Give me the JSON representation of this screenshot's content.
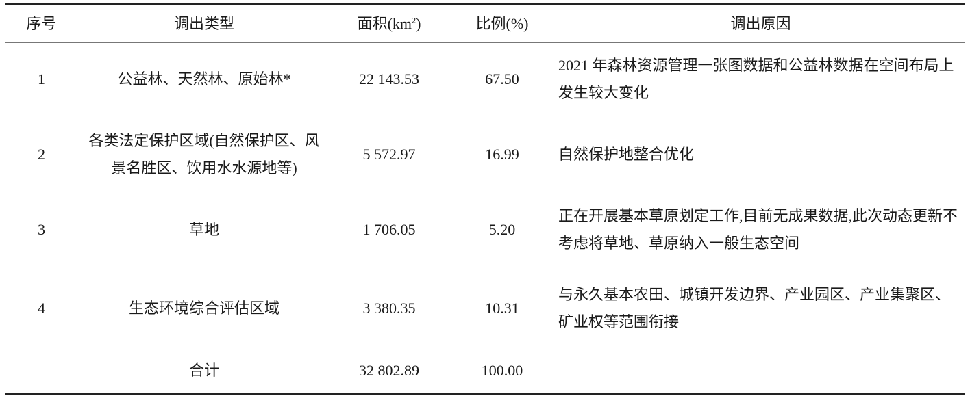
{
  "table": {
    "headers": {
      "index": "序号",
      "type": "调出类型",
      "area": "面积(km",
      "area_sup": "2",
      "area_close": ")",
      "ratio": "比例(%)",
      "reason": "调出原因"
    },
    "rows": [
      {
        "index": "1",
        "type": "公益林、天然林、原始林*",
        "area": "22 143.53",
        "ratio": "67.50",
        "reason": "2021 年森林资源管理一张图数据和公益林数据在空间布局上发生较大变化"
      },
      {
        "index": "2",
        "type": "各类法定保护区域(自然保护区、风景名胜区、饮用水水源地等)",
        "area": "5 572.97",
        "ratio": "16.99",
        "reason": "自然保护地整合优化"
      },
      {
        "index": "3",
        "type": "草地",
        "area": "1 706.05",
        "ratio": "5.20",
        "reason": "正在开展基本草原划定工作,目前无成果数据,此次动态更新不考虑将草地、草原纳入一般生态空间"
      },
      {
        "index": "4",
        "type": "生态环境综合评估区域",
        "area": "3 380.35",
        "ratio": "10.31",
        "reason": "与永久基本农田、城镇开发边界、产业园区、产业集聚区、矿业权等范围衔接"
      }
    ],
    "total": {
      "label": "合计",
      "area": "32 802.89",
      "ratio": "100.00"
    }
  }
}
